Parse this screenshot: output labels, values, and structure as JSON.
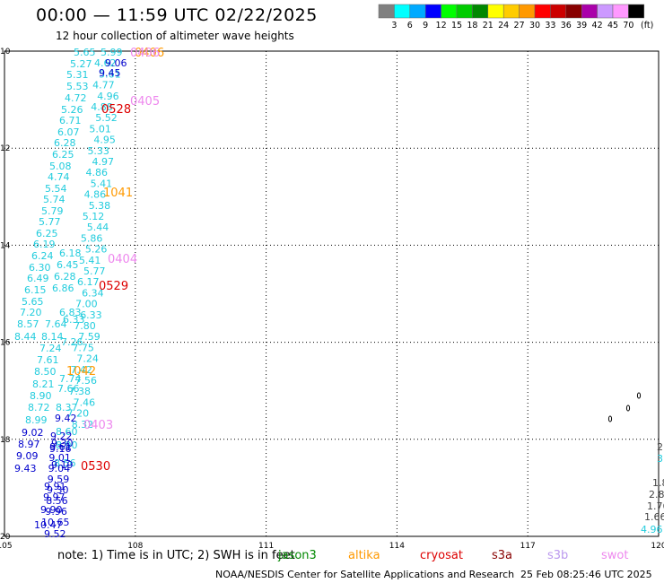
{
  "header": {
    "title": "00:00 — 11:59 UTC 02/22/2025",
    "subtitle": "12 hour collection of altimeter wave heights"
  },
  "color_scale": {
    "unit": "(ft)",
    "bins": [
      {
        "label": "3",
        "color": "#808080"
      },
      {
        "label": "6",
        "color": "#00ffff"
      },
      {
        "label": "9",
        "color": "#00aaff"
      },
      {
        "label": "12",
        "color": "#0000ff"
      },
      {
        "label": "15",
        "color": "#00ff00"
      },
      {
        "label": "18",
        "color": "#00cc00"
      },
      {
        "label": "21",
        "color": "#008800"
      },
      {
        "label": "24",
        "color": "#ffff00"
      },
      {
        "label": "27",
        "color": "#ffcc00"
      },
      {
        "label": "30",
        "color": "#ff9900"
      },
      {
        "label": "33",
        "color": "#ff0000"
      },
      {
        "label": "36",
        "color": "#cc0000"
      },
      {
        "label": "39",
        "color": "#880000"
      },
      {
        "label": "42",
        "color": "#aa00aa"
      },
      {
        "label": "45",
        "color": "#cc99ff"
      },
      {
        "label": "70",
        "color": "#ff99ff"
      },
      {
        "label": "",
        "color": "#000000"
      }
    ]
  },
  "map": {
    "lon_ticks": [
      "105",
      "108",
      "111",
      "114",
      "117",
      "120"
    ],
    "lat_ticks": [
      "10",
      "12",
      "14",
      "16",
      "18",
      "20"
    ],
    "lon_range": [
      105,
      120
    ],
    "lat_range": [
      10,
      20
    ]
  },
  "track_labels": [
    {
      "text": "0528",
      "color": "#dd0000"
    },
    {
      "text": "0405",
      "color": "#ee88ee"
    },
    {
      "text": "1041",
      "color": "#ff9900"
    },
    {
      "text": "0404",
      "color": "#ee88ee"
    },
    {
      "text": "0529",
      "color": "#dd0000"
    },
    {
      "text": "1042",
      "color": "#ff9900"
    },
    {
      "text": "0403",
      "color": "#ee88ee"
    },
    {
      "text": "0530",
      "color": "#dd0000"
    }
  ],
  "wave_labels": {
    "cyan": [
      "5.65",
      "5.27",
      "5.31",
      "5.53",
      "4.72",
      "5.26",
      "6.71",
      "6.07",
      "6.28",
      "6.25",
      "5.08",
      "4.74",
      "5.54",
      "5.74",
      "5.79",
      "5.77",
      "6.25",
      "6.19",
      "6.24",
      "6.30",
      "6.49",
      "6.15",
      "5.65",
      "7.20",
      "8.57",
      "8.44",
      "7.24",
      "7.61",
      "8.50",
      "8.21",
      "8.90",
      "8.72",
      "8.99",
      "6.83",
      "7.64",
      "8.14",
      "6.45",
      "6.18",
      "6.28",
      "6.86",
      "6.33",
      "7.26",
      "7.74",
      "7.66",
      "8.37",
      "8.60",
      "8.56",
      "8.90"
    ],
    "blue": [
      "9.06",
      "9.45",
      "9.42",
      "9.02",
      "8.97",
      "9.09",
      "9.43",
      "9.30",
      "9.16",
      "9.19",
      "9.52",
      "10.65",
      "10.47",
      "9.90",
      "9.91",
      "9.97"
    ],
    "right_gray": [
      "2",
      "1.8",
      "2.8",
      "1.76",
      "1.66"
    ],
    "right_cyan": [
      "3",
      "4.96"
    ]
  },
  "footer": {
    "note": "note: 1) Time is in UTC; 2) SWH is in feet",
    "satellites": [
      {
        "name": "jason3",
        "color": "#008800"
      },
      {
        "name": "altika",
        "color": "#ff9900"
      },
      {
        "name": "cryosat",
        "color": "#dd0000"
      },
      {
        "name": "s3a",
        "color": "#880000"
      },
      {
        "name": "s3b",
        "color": "#bb99ee"
      },
      {
        "name": "swot",
        "color": "#ee88ee"
      }
    ],
    "credit": "NOAA/NESDIS Center for Satellite Applications and Research",
    "generated": "25 Feb 08:25:46 UTC 2025"
  }
}
